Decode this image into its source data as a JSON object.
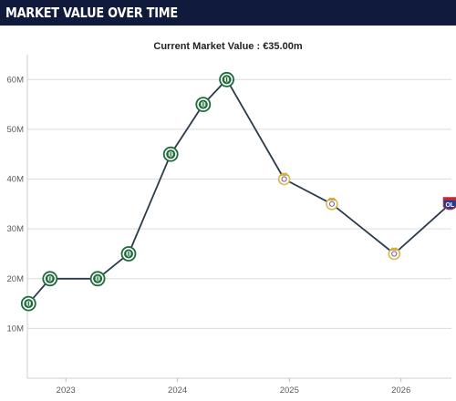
{
  "header": {
    "title": "MARKET VALUE OVER TIME"
  },
  "chart_data": {
    "type": "line",
    "title": "",
    "subtitle": "Current Market Value : €35.00m",
    "xlabel": "",
    "ylabel": "",
    "xlim": [
      "2022-08-28",
      "2026-06-15"
    ],
    "ylim": [
      0,
      65
    ],
    "y_ticks": [
      10,
      20,
      30,
      40,
      50,
      60
    ],
    "y_tick_labels": [
      "10M",
      "20M",
      "30M",
      "40M",
      "50M",
      "60M"
    ],
    "x_ticks": [
      "2023-01-01",
      "2024-01-01",
      "2025-01-01",
      "2026-01-01"
    ],
    "x_tick_labels": [
      "2023",
      "2024",
      "2025",
      "2026"
    ],
    "grid": true,
    "legend": "none",
    "series": [
      {
        "color": "#2b3b4a",
        "points": [
          {
            "x": "2022-09-01",
            "y": 15,
            "club": "palmeiras"
          },
          {
            "x": "2022-11-10",
            "y": 20,
            "club": "palmeiras"
          },
          {
            "x": "2023-04-15",
            "y": 20,
            "club": "palmeiras"
          },
          {
            "x": "2023-07-25",
            "y": 25,
            "club": "palmeiras"
          },
          {
            "x": "2023-12-10",
            "y": 45,
            "club": "palmeiras"
          },
          {
            "x": "2024-03-25",
            "y": 55,
            "club": "palmeiras"
          },
          {
            "x": "2024-06-10",
            "y": 60,
            "club": "palmeiras"
          },
          {
            "x": "2024-12-15",
            "y": 40,
            "club": "real-madrid"
          },
          {
            "x": "2025-05-20",
            "y": 35,
            "club": "real-madrid"
          },
          {
            "x": "2025-12-10",
            "y": 25,
            "club": "real-madrid"
          },
          {
            "x": "2026-06-10",
            "y": 35,
            "club": "lyon"
          }
        ]
      }
    ],
    "club_colors": {
      "palmeiras": "#1e6b3a",
      "real-madrid": "#d8b94a",
      "lyon": "#1f3b8f"
    },
    "club_icons": {
      "palmeiras": "palmeiras-crest-icon",
      "real-madrid": "real-madrid-crest-icon",
      "lyon": "lyon-crest-icon"
    },
    "icon_text": {
      "lyon": "OL"
    }
  }
}
